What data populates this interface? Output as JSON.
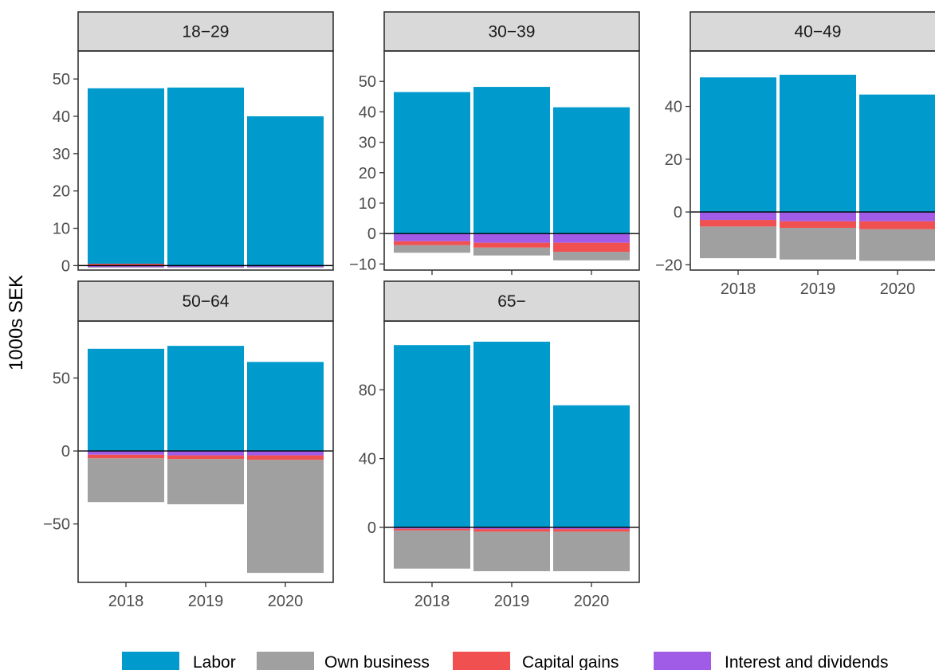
{
  "chart_data": {
    "type": "bar",
    "stacked": true,
    "ylabel": "1000s SEK",
    "xlabel": "",
    "categories": [
      "2018",
      "2019",
      "2020"
    ],
    "colors": {
      "Labor": "#009ACD",
      "Own business": "#A0A0A0",
      "Capital gains": "#F05050",
      "Interest and dividends": "#A05CE6"
    },
    "legend": {
      "position": "bottom",
      "entries": [
        "Labor",
        "Own business",
        "Capital gains",
        "Interest and dividends"
      ]
    },
    "panels": [
      {
        "label": "18−29",
        "ylim": [
          -1.2,
          57.5
        ],
        "yticks": [
          0,
          10,
          20,
          30,
          40,
          50
        ],
        "segments": {
          "2018": {
            "Labor": [
              0,
              47.5
            ],
            "Capital gains": [
              0,
              0.5
            ],
            "Interest and dividends": [
              -0.4,
              0
            ],
            "Own business": [
              -0.6,
              -0.4
            ]
          },
          "2019": {
            "Labor": [
              0,
              47.7
            ],
            "Capital gains": [
              0,
              0.1
            ],
            "Interest and dividends": [
              -0.4,
              0
            ],
            "Own business": [
              -0.6,
              -0.4
            ]
          },
          "2020": {
            "Labor": [
              0,
              40.0
            ],
            "Capital gains": [
              0,
              0.1
            ],
            "Interest and dividends": [
              -0.4,
              0
            ],
            "Own business": [
              -0.6,
              -0.4
            ]
          }
        }
      },
      {
        "label": "30−39",
        "ylim": [
          -12,
          60
        ],
        "yticks": [
          -10,
          0,
          10,
          20,
          30,
          40,
          50
        ],
        "segments": {
          "2018": {
            "Labor": [
              0,
              46.5
            ],
            "Interest and dividends": [
              -2.5,
              0
            ],
            "Capital gains": [
              -3.8,
              -2.5
            ],
            "Own business": [
              -6.3,
              -3.8
            ]
          },
          "2019": {
            "Labor": [
              0,
              48.2
            ],
            "Interest and dividends": [
              -3.0,
              0
            ],
            "Capital gains": [
              -4.6,
              -3.0
            ],
            "Own business": [
              -7.2,
              -4.6
            ]
          },
          "2020": {
            "Labor": [
              0,
              41.5
            ],
            "Interest and dividends": [
              -3.0,
              0
            ],
            "Capital gains": [
              -6.0,
              -3.0
            ],
            "Own business": [
              -8.8,
              -6.0
            ]
          }
        }
      },
      {
        "label": "40−49",
        "ylim": [
          -22,
          61
        ],
        "yticks": [
          -20,
          0,
          20,
          40
        ],
        "segments": {
          "2018": {
            "Labor": [
              0,
              51.0
            ],
            "Interest and dividends": [
              -3.0,
              0
            ],
            "Capital gains": [
              -5.5,
              -3.0
            ],
            "Own business": [
              -17.5,
              -5.5
            ]
          },
          "2019": {
            "Labor": [
              0,
              52.0
            ],
            "Interest and dividends": [
              -3.5,
              0
            ],
            "Capital gains": [
              -6.0,
              -3.5
            ],
            "Own business": [
              -18.0,
              -6.0
            ]
          },
          "2020": {
            "Labor": [
              0,
              44.5
            ],
            "Interest and dividends": [
              -3.5,
              0
            ],
            "Capital gains": [
              -6.5,
              -3.5
            ],
            "Own business": [
              -18.5,
              -6.5
            ]
          }
        }
      },
      {
        "label": "50−64",
        "ylim": [
          -90,
          89
        ],
        "yticks": [
          -50,
          0,
          50
        ],
        "segments": {
          "2018": {
            "Labor": [
              0,
              70.0
            ],
            "Interest and dividends": [
              -2.5,
              0
            ],
            "Capital gains": [
              -5.0,
              -2.5
            ],
            "Own business": [
              -35.0,
              -5.0
            ]
          },
          "2019": {
            "Labor": [
              0,
              72.0
            ],
            "Interest and dividends": [
              -3.0,
              0
            ],
            "Capital gains": [
              -5.5,
              -3.0
            ],
            "Own business": [
              -36.5,
              -5.5
            ]
          },
          "2020": {
            "Labor": [
              0,
              61.0
            ],
            "Interest and dividends": [
              -3.0,
              0
            ],
            "Capital gains": [
              -6.0,
              -3.0
            ],
            "Own business": [
              -83.5,
              -6.0
            ]
          }
        }
      },
      {
        "label": "65−",
        "ylim": [
          -32,
          120
        ],
        "yticks": [
          0,
          40,
          80
        ],
        "segments": {
          "2018": {
            "Labor": [
              0,
              106.0
            ],
            "Interest and dividends": [
              -0.8,
              0
            ],
            "Capital gains": [
              -1.8,
              -0.8
            ],
            "Own business": [
              -24.0,
              -1.8
            ]
          },
          "2019": {
            "Labor": [
              0,
              108.0
            ],
            "Interest and dividends": [
              -1.0,
              0
            ],
            "Capital gains": [
              -2.5,
              -1.0
            ],
            "Own business": [
              -25.5,
              -2.5
            ]
          },
          "2020": {
            "Labor": [
              0,
              71.0
            ],
            "Interest and dividends": [
              -1.0,
              0
            ],
            "Capital gains": [
              -2.5,
              -1.0
            ],
            "Own business": [
              -25.5,
              -2.5
            ]
          }
        }
      }
    ]
  }
}
